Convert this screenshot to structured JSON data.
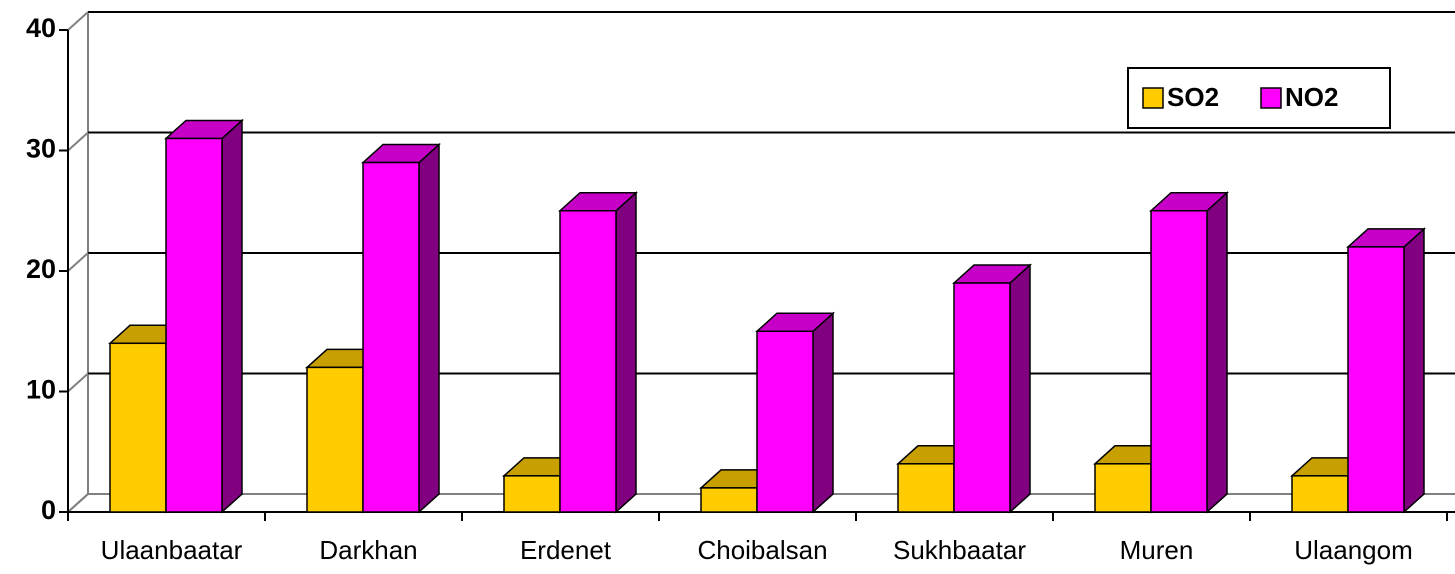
{
  "chart_data": {
    "type": "bar3d",
    "categories": [
      "Ulaanbaatar",
      "Darkhan",
      "Erdenet",
      "Choibalsan",
      "Sukhbaatar",
      "Muren",
      "Ulaangom"
    ],
    "series": [
      {
        "name": "SO2",
        "color": "#ffcc00",
        "values": [
          14,
          12,
          3,
          2,
          4,
          4,
          3
        ]
      },
      {
        "name": "NO2",
        "color": "#ff00ff",
        "values": [
          31,
          29,
          25,
          15,
          19,
          25,
          22
        ]
      }
    ],
    "ylim": [
      0,
      40
    ],
    "yticks": [
      0,
      10,
      20,
      30,
      40
    ],
    "grid": true,
    "legend": "top-right"
  }
}
